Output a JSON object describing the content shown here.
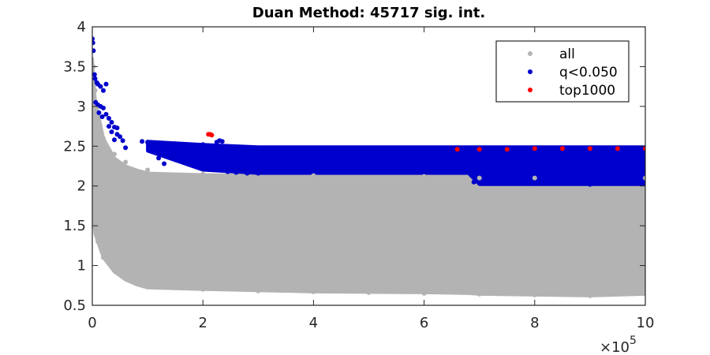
{
  "chart_data": {
    "type": "scatter",
    "title": "Duan Method: 45717 sig. int.",
    "xlabel": "",
    "ylabel": "",
    "x_multiplier_label": "×10",
    "x_multiplier_exponent": "5",
    "xlim": [
      0,
      1000000
    ],
    "ylim": [
      0.5,
      4
    ],
    "x_ticks": [
      0,
      200000,
      400000,
      600000,
      800000,
      1000000
    ],
    "x_tick_labels": [
      "0",
      "2",
      "4",
      "6",
      "8",
      "10"
    ],
    "y_ticks": [
      0.5,
      1,
      1.5,
      2,
      2.5,
      3,
      3.5,
      4
    ],
    "y_tick_labels": [
      "0.5",
      "1",
      "1.5",
      "2",
      "2.5",
      "3",
      "3.5",
      "4"
    ],
    "grid": false,
    "legend_position": "top-right",
    "series": [
      {
        "name": "all",
        "color": "#b3b3b3",
        "points": [
          [
            0,
            3.7
          ],
          [
            2000,
            3.5
          ],
          [
            5000,
            3.2
          ],
          [
            10000,
            2.9
          ],
          [
            20000,
            2.6
          ],
          [
            40000,
            2.4
          ],
          [
            60000,
            2.3
          ],
          [
            100000,
            2.2
          ],
          [
            200000,
            2.15
          ],
          [
            400000,
            2.13
          ],
          [
            600000,
            2.12
          ],
          [
            700000,
            2.1
          ],
          [
            800000,
            2.1
          ],
          [
            1000000,
            2.1
          ],
          [
            0,
            1.8
          ],
          [
            3000,
            1.5
          ],
          [
            10000,
            1.3
          ],
          [
            20000,
            1.1
          ],
          [
            40000,
            0.95
          ],
          [
            60000,
            0.85
          ],
          [
            80000,
            0.78
          ],
          [
            100000,
            0.75
          ],
          [
            150000,
            0.72
          ],
          [
            200000,
            0.7
          ],
          [
            300000,
            0.68
          ],
          [
            400000,
            0.67
          ],
          [
            500000,
            0.66
          ],
          [
            600000,
            0.65
          ],
          [
            700000,
            0.64
          ],
          [
            800000,
            0.63
          ],
          [
            900000,
            0.62
          ],
          [
            1000000,
            0.65
          ]
        ]
      },
      {
        "name": "q<0.050",
        "color": "#0000cc",
        "points": [
          [
            0,
            3.85
          ],
          [
            1000,
            3.8
          ],
          [
            2000,
            3.7
          ],
          [
            4000,
            3.4
          ],
          [
            5000,
            3.35
          ],
          [
            8000,
            3.3
          ],
          [
            10000,
            3.28
          ],
          [
            15000,
            3.25
          ],
          [
            20000,
            3.2
          ],
          [
            25000,
            3.28
          ],
          [
            6000,
            3.05
          ],
          [
            10000,
            3.02
          ],
          [
            15000,
            3.0
          ],
          [
            20000,
            2.98
          ],
          [
            25000,
            2.9
          ],
          [
            30000,
            2.85
          ],
          [
            35000,
            2.8
          ],
          [
            12000,
            2.92
          ],
          [
            18000,
            2.87
          ],
          [
            30000,
            2.75
          ],
          [
            40000,
            2.74
          ],
          [
            45000,
            2.73
          ],
          [
            35000,
            2.68
          ],
          [
            45000,
            2.65
          ],
          [
            50000,
            2.62
          ],
          [
            40000,
            2.58
          ],
          [
            55000,
            2.57
          ],
          [
            90000,
            2.56
          ],
          [
            100000,
            2.55
          ],
          [
            150000,
            2.53
          ],
          [
            200000,
            2.52
          ],
          [
            225000,
            2.55
          ],
          [
            230000,
            2.57
          ],
          [
            235000,
            2.56
          ],
          [
            60000,
            2.48
          ],
          [
            120000,
            2.46
          ],
          [
            200000,
            2.45
          ],
          [
            300000,
            2.47
          ],
          [
            500000,
            2.47
          ],
          [
            700000,
            2.46
          ],
          [
            900000,
            2.47
          ],
          [
            1000000,
            2.47
          ],
          [
            120000,
            2.35
          ],
          [
            250000,
            2.38
          ],
          [
            400000,
            2.37
          ],
          [
            650000,
            2.37
          ],
          [
            1000000,
            2.38
          ],
          [
            130000,
            2.28
          ],
          [
            200000,
            2.3
          ],
          [
            400000,
            2.3
          ],
          [
            700000,
            2.3
          ],
          [
            1000000,
            2.3
          ],
          [
            200000,
            2.22
          ],
          [
            230000,
            2.2
          ],
          [
            245000,
            2.18
          ],
          [
            260000,
            2.17
          ],
          [
            280000,
            2.16
          ],
          [
            300000,
            2.16
          ],
          [
            350000,
            2.19
          ],
          [
            500000,
            2.19
          ],
          [
            700000,
            2.22
          ],
          [
            1000000,
            2.22
          ],
          [
            690000,
            2.05
          ],
          [
            800000,
            2.03
          ],
          [
            900000,
            2.02
          ],
          [
            1000000,
            2.04
          ]
        ]
      },
      {
        "name": "top1000",
        "color": "#ff0000",
        "points": [
          [
            210000,
            2.65
          ],
          [
            213000,
            2.65
          ],
          [
            216000,
            2.64
          ],
          [
            660000,
            2.46
          ],
          [
            700000,
            2.46
          ],
          [
            750000,
            2.46
          ],
          [
            800000,
            2.47
          ],
          [
            850000,
            2.47
          ],
          [
            900000,
            2.47
          ],
          [
            950000,
            2.47
          ],
          [
            1000000,
            2.47
          ]
        ]
      }
    ],
    "bands": [
      {
        "series": "all",
        "x": [
          0,
          5000,
          20000,
          40000,
          60000,
          80000,
          100000,
          200000,
          400000,
          600000,
          680000,
          700000,
          800000,
          900000,
          1000000
        ],
        "y_top": [
          3.6,
          3.1,
          2.6,
          2.35,
          2.25,
          2.2,
          2.16,
          2.14,
          2.13,
          2.13,
          2.12,
          2.05,
          2.04,
          2.03,
          2.05
        ],
        "y_bottom": [
          1.8,
          1.4,
          1.1,
          0.92,
          0.82,
          0.76,
          0.72,
          0.7,
          0.67,
          0.66,
          0.65,
          0.64,
          0.63,
          0.62,
          0.64
        ]
      },
      {
        "series": "q<0.050",
        "x": [
          100000,
          200000,
          300000,
          400000,
          600000,
          680000,
          700000,
          800000,
          1000000
        ],
        "y_top": [
          2.56,
          2.52,
          2.49,
          2.49,
          2.49,
          2.49,
          2.49,
          2.49,
          2.49
        ],
        "y_bottom": [
          2.44,
          2.2,
          2.16,
          2.16,
          2.16,
          2.16,
          2.02,
          2.02,
          2.02
        ]
      }
    ]
  }
}
